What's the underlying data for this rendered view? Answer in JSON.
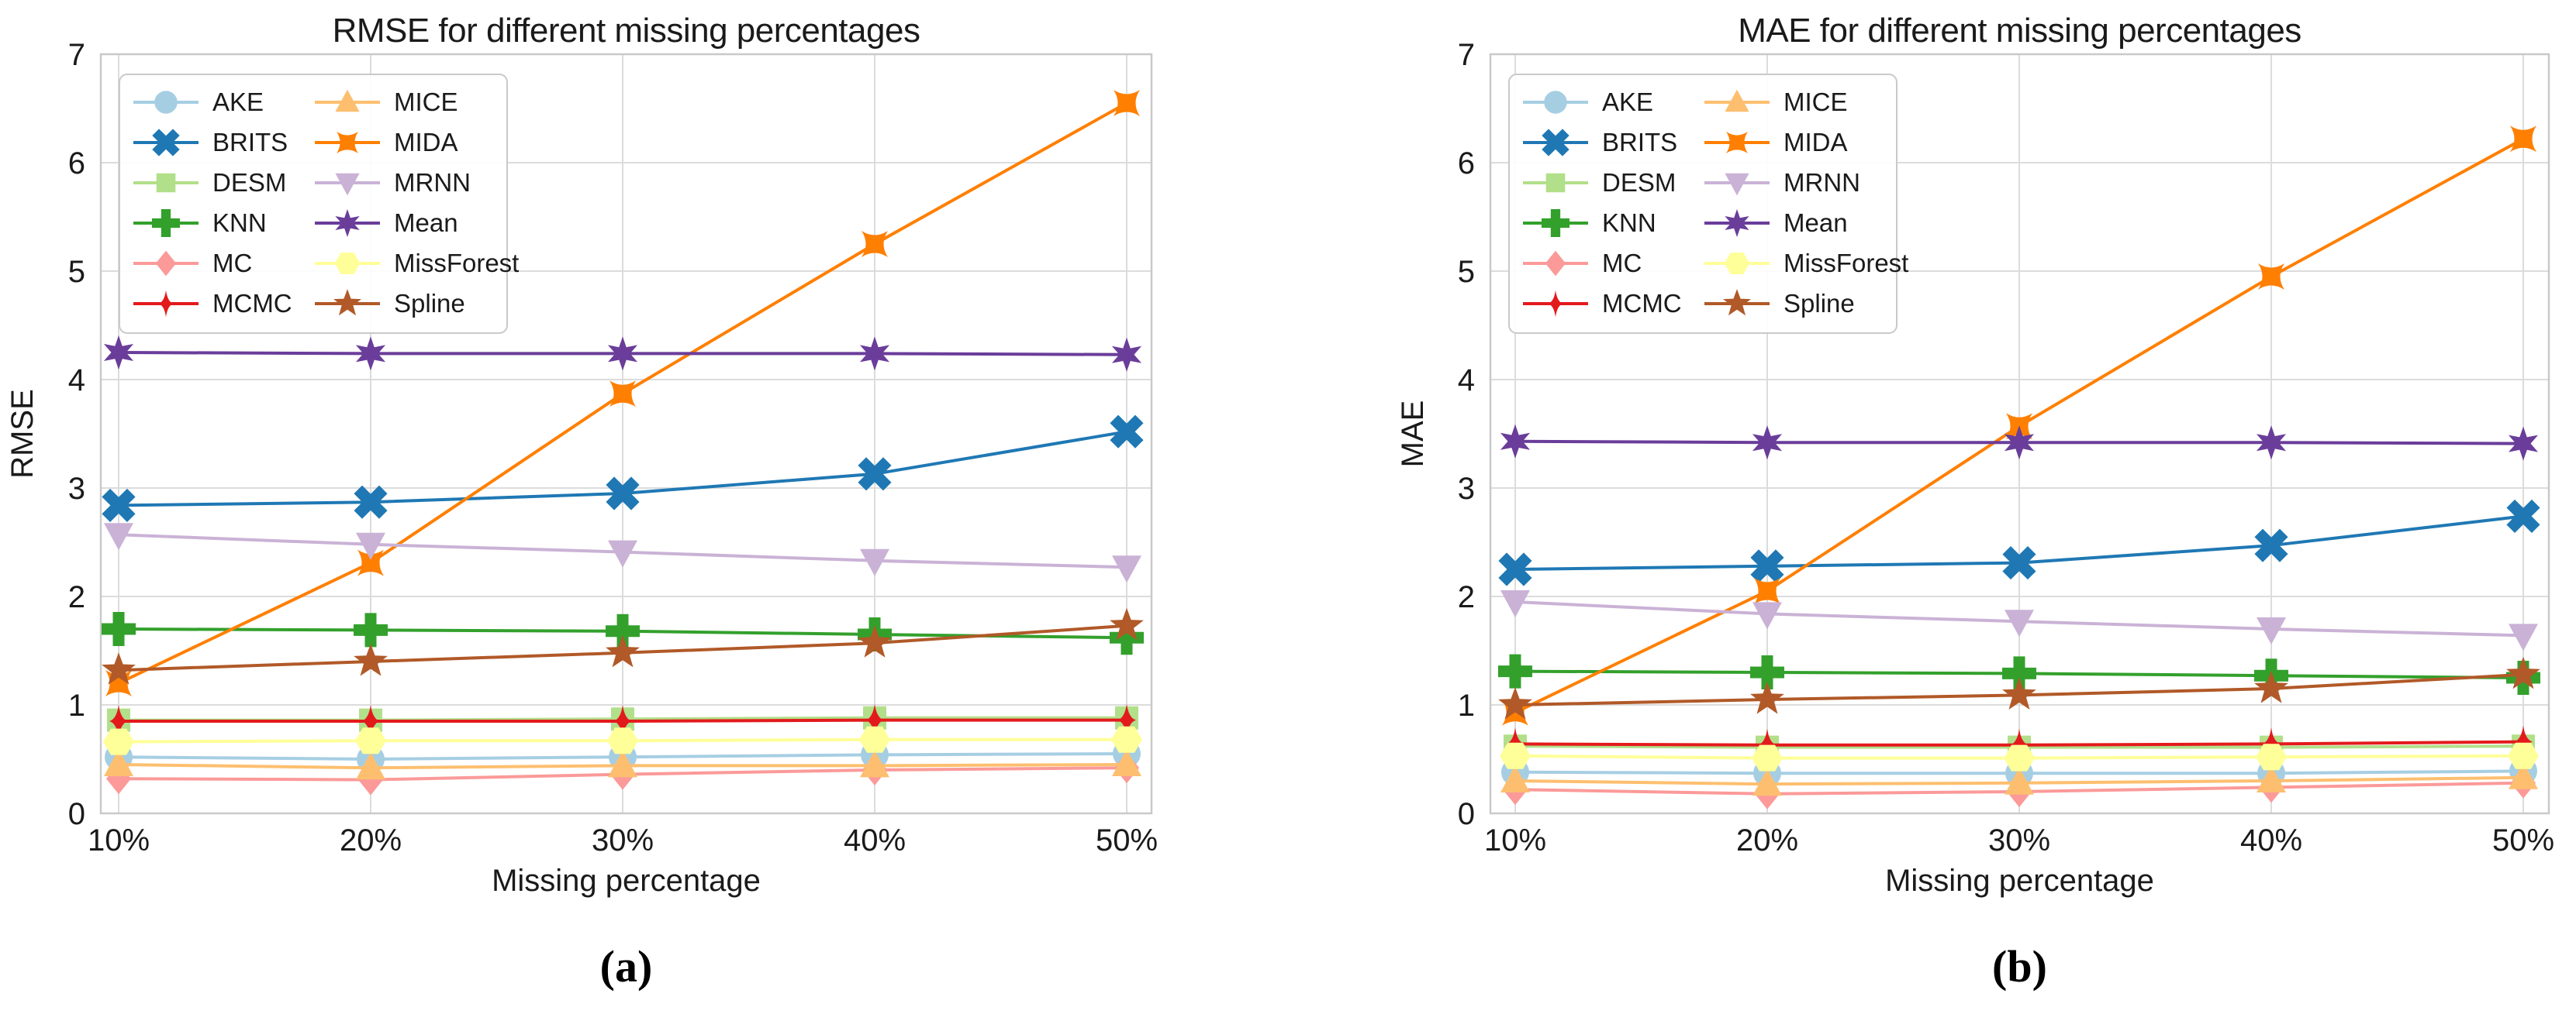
{
  "captions": {
    "a": "(a)",
    "b": "(b)"
  },
  "style_colors": {
    "grid": "#dcdcdc",
    "spine": "#c9c9c9",
    "text": "#1a1a1a"
  },
  "chart_data": [
    {
      "type": "line",
      "title": "RMSE for different missing percentages",
      "xlabel": "Missing percentage",
      "ylabel": "RMSE",
      "categories": [
        "10%",
        "20%",
        "30%",
        "40%",
        "50%"
      ],
      "ylim": [
        0,
        7
      ],
      "yticks": [
        0,
        1,
        2,
        3,
        4,
        5,
        6,
        7
      ],
      "grid": true,
      "legend_position": "upper left, 2 columns",
      "series": [
        {
          "name": "AKE",
          "color": "#a6cee3",
          "marker": "circle",
          "values": [
            0.52,
            0.5,
            0.52,
            0.54,
            0.55
          ]
        },
        {
          "name": "BRITS",
          "color": "#1f78b4",
          "marker": "x-cross",
          "values": [
            2.84,
            2.87,
            2.95,
            3.13,
            3.52
          ]
        },
        {
          "name": "DESM",
          "color": "#b2df8a",
          "marker": "square",
          "values": [
            0.86,
            0.86,
            0.87,
            0.88,
            0.88
          ]
        },
        {
          "name": "KNN",
          "color": "#33a02c",
          "marker": "plus",
          "values": [
            1.7,
            1.69,
            1.68,
            1.65,
            1.62
          ]
        },
        {
          "name": "MC",
          "color": "#fb9a99",
          "marker": "diamond",
          "values": [
            0.32,
            0.31,
            0.36,
            0.4,
            0.42
          ]
        },
        {
          "name": "MCMC",
          "color": "#e31a1c",
          "marker": "thin-diamond",
          "values": [
            0.85,
            0.85,
            0.85,
            0.86,
            0.86
          ]
        },
        {
          "name": "MICE",
          "color": "#fdbf6f",
          "marker": "triangle-up",
          "values": [
            0.45,
            0.42,
            0.44,
            0.44,
            0.45
          ]
        },
        {
          "name": "MIDA",
          "color": "#ff7f00",
          "marker": "four-point-star",
          "values": [
            1.2,
            2.31,
            3.87,
            5.25,
            6.55
          ]
        },
        {
          "name": "MRNN",
          "color": "#cab2d6",
          "marker": "triangle-down",
          "values": [
            2.57,
            2.48,
            2.41,
            2.33,
            2.27
          ]
        },
        {
          "name": "Mean",
          "color": "#6a3d9a",
          "marker": "six-point-star",
          "values": [
            4.25,
            4.24,
            4.24,
            4.24,
            4.23
          ]
        },
        {
          "name": "MissForest",
          "color": "#ffff99",
          "marker": "hexagon",
          "values": [
            0.66,
            0.67,
            0.67,
            0.68,
            0.68
          ]
        },
        {
          "name": "Spline",
          "color": "#b15928",
          "marker": "star",
          "values": [
            1.32,
            1.4,
            1.48,
            1.57,
            1.73
          ]
        }
      ]
    },
    {
      "type": "line",
      "title": "MAE for different missing percentages",
      "xlabel": "Missing percentage",
      "ylabel": "MAE",
      "categories": [
        "10%",
        "20%",
        "30%",
        "40%",
        "50%"
      ],
      "ylim": [
        0,
        7
      ],
      "yticks": [
        0,
        1,
        2,
        3,
        4,
        5,
        6,
        7
      ],
      "grid": true,
      "legend_position": "upper left, 2 columns",
      "series": [
        {
          "name": "AKE",
          "color": "#a6cee3",
          "marker": "circle",
          "values": [
            0.38,
            0.37,
            0.37,
            0.37,
            0.39
          ]
        },
        {
          "name": "BRITS",
          "color": "#1f78b4",
          "marker": "x-cross",
          "values": [
            2.25,
            2.28,
            2.31,
            2.47,
            2.74
          ]
        },
        {
          "name": "DESM",
          "color": "#b2df8a",
          "marker": "square",
          "values": [
            0.62,
            0.61,
            0.61,
            0.61,
            0.62
          ]
        },
        {
          "name": "KNN",
          "color": "#33a02c",
          "marker": "plus",
          "values": [
            1.31,
            1.3,
            1.29,
            1.27,
            1.25
          ]
        },
        {
          "name": "MC",
          "color": "#fb9a99",
          "marker": "diamond",
          "values": [
            0.22,
            0.18,
            0.2,
            0.24,
            0.28
          ]
        },
        {
          "name": "MCMC",
          "color": "#e31a1c",
          "marker": "thin-diamond",
          "values": [
            0.64,
            0.63,
            0.63,
            0.64,
            0.66
          ]
        },
        {
          "name": "MICE",
          "color": "#fdbf6f",
          "marker": "triangle-up",
          "values": [
            0.3,
            0.27,
            0.28,
            0.3,
            0.33
          ]
        },
        {
          "name": "MIDA",
          "color": "#ff7f00",
          "marker": "four-point-star",
          "values": [
            0.93,
            2.05,
            3.57,
            4.95,
            6.22
          ]
        },
        {
          "name": "MRNN",
          "color": "#cab2d6",
          "marker": "triangle-down",
          "values": [
            1.95,
            1.84,
            1.77,
            1.7,
            1.64
          ]
        },
        {
          "name": "Mean",
          "color": "#6a3d9a",
          "marker": "six-point-star",
          "values": [
            3.43,
            3.42,
            3.42,
            3.42,
            3.41
          ]
        },
        {
          "name": "MissForest",
          "color": "#ffff99",
          "marker": "hexagon",
          "values": [
            0.53,
            0.51,
            0.51,
            0.52,
            0.53
          ]
        },
        {
          "name": "Spline",
          "color": "#b15928",
          "marker": "star",
          "values": [
            1.0,
            1.05,
            1.09,
            1.15,
            1.28
          ]
        }
      ]
    }
  ]
}
